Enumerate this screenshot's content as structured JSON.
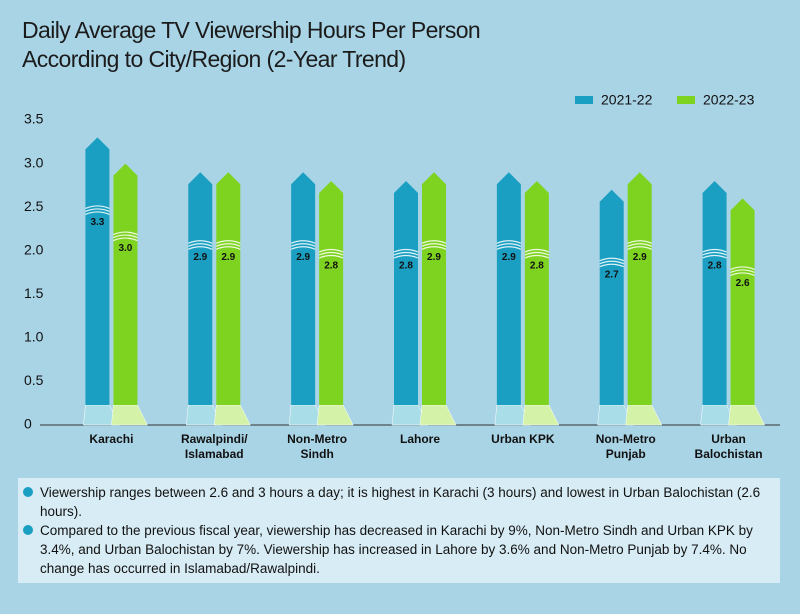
{
  "chart_data": {
    "type": "bar",
    "title": [
      "Daily Average TV Viewership Hours Per Person",
      "According to City/Region (2-Year Trend)"
    ],
    "categories": [
      "Karachi",
      "Rawalpindi/ Islamabad",
      "Non-Metro Sindh",
      "Lahore",
      "Urban KPK",
      "Non-Metro Punjab",
      "Urban Balochistan"
    ],
    "series": [
      {
        "name": "2021-22",
        "color": "#1a9fc2",
        "values": [
          3.3,
          2.9,
          2.9,
          2.8,
          2.9,
          2.7,
          2.8
        ],
        "value_labels": [
          "3.3",
          "2.9",
          "2.9",
          "2.8",
          "2.9",
          "2.7",
          "2.8"
        ]
      },
      {
        "name": "2022-23",
        "color": "#7ed320",
        "values": [
          3.0,
          2.9,
          2.8,
          2.9,
          2.8,
          2.9,
          2.6
        ],
        "value_labels": [
          "3.0",
          "2.9",
          "2.8",
          "2.9",
          "2.8",
          "2.9",
          "2.6"
        ]
      }
    ],
    "ylim": [
      0,
      3.5
    ],
    "yticks": [
      0,
      0.5,
      {
        "value": 1,
        "label": "1.0"
      },
      1.5,
      {
        "value": 2,
        "label": "2.0"
      },
      2.5,
      {
        "value": 3,
        "label": "3.0"
      },
      3.5
    ],
    "grid": false,
    "legend": "top-right",
    "notes": [
      "Viewership ranges between 2.6 and 3 hours a day; it is highest in Karachi (3 hours) and lowest in Urban Balochistan (2.6 hours).",
      "Compared to the previous fiscal year, viewership has decreased in Karachi by 9%, Non-Metro Sindh and Urban KPK by 3.4%, and Urban Balochistan by 7%. Viewership has increased in Lahore by 3.6% and Non-Metro Punjab by 7.4%. No change has occurred in Islamabad/Rawalpindi."
    ]
  }
}
